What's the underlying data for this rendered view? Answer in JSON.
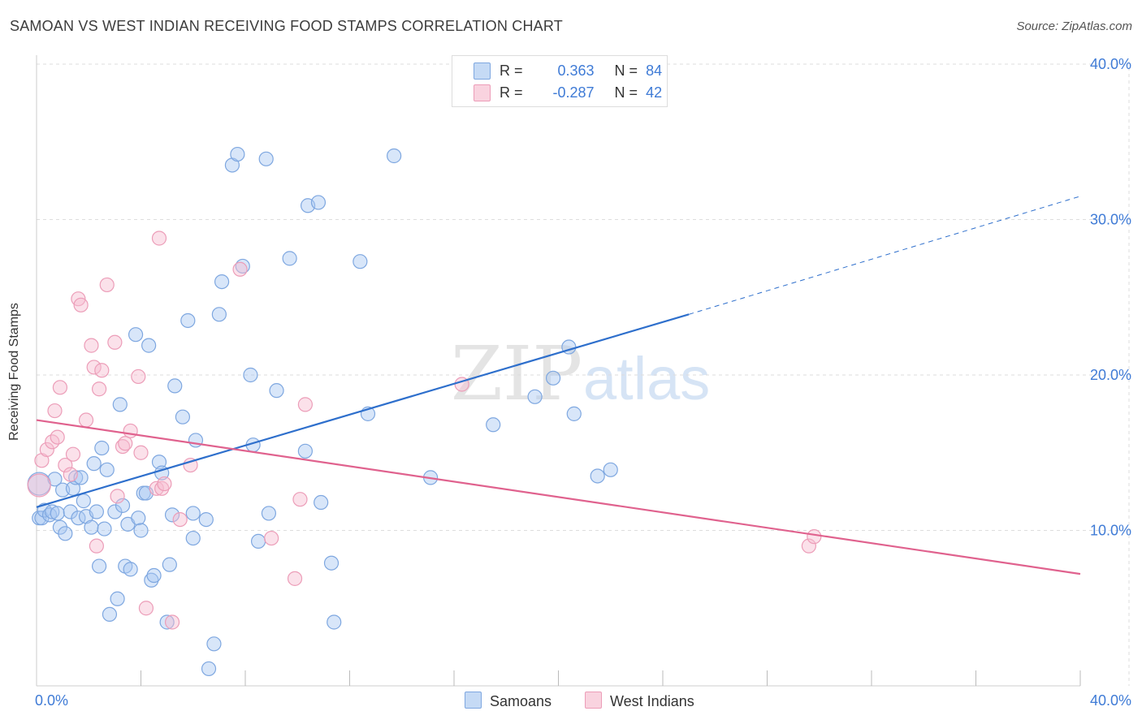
{
  "header": {
    "title": "SAMOAN VS WEST INDIAN RECEIVING FOOD STAMPS CORRELATION CHART",
    "source": "Source: ZipAtlas.com"
  },
  "legend": {
    "series": [
      {
        "r_label": "R =",
        "r_value": "0.363",
        "n_label": "N =",
        "n_value": "84"
      },
      {
        "r_label": "R =",
        "r_value": "-0.287",
        "n_label": "N =",
        "n_value": "42"
      }
    ]
  },
  "bottom_legend": {
    "samoans": "Samoans",
    "west_indians": "West Indians"
  },
  "colors": {
    "samoans_fill": "#a9c8f1",
    "samoans_stroke": "#7ea7e0",
    "samoans_line": "#2e6fcc",
    "west_indians_fill": "#f6bcd0",
    "west_indians_stroke": "#ec9db8",
    "west_indians_line": "#e0628e",
    "tick_label": "#3f7bd6",
    "grid": "#dddddd"
  },
  "watermark": {
    "zip": "ZIP",
    "atlas": "atlas"
  },
  "chart_data": {
    "type": "scatter",
    "title": "SAMOAN VS WEST INDIAN RECEIVING FOOD STAMPS CORRELATION CHART",
    "xlabel": "",
    "ylabel": "Receiving Food Stamps",
    "xlim": [
      0,
      40
    ],
    "ylim": [
      0,
      40
    ],
    "x_tick_labels": [
      {
        "value": 0,
        "label": "0.0%"
      },
      {
        "value": 40,
        "label": "40.0%"
      }
    ],
    "y_tick_labels": [
      {
        "value": 10,
        "label": "10.0%"
      },
      {
        "value": 20,
        "label": "20.0%"
      },
      {
        "value": 30,
        "label": "30.0%"
      },
      {
        "value": 40,
        "label": "40.0%"
      }
    ],
    "x_minor_ticks": [
      4,
      8,
      12,
      16,
      20,
      24,
      28,
      32,
      36,
      40
    ],
    "series": [
      {
        "name": "Samoans",
        "points": [
          [
            0.1,
            13.0,
            22
          ],
          [
            0.1,
            10.8,
            10
          ],
          [
            0.2,
            10.8,
            10
          ],
          [
            0.3,
            11.3,
            10
          ],
          [
            0.5,
            11.0,
            10
          ],
          [
            0.6,
            11.2,
            10
          ],
          [
            0.7,
            13.3,
            10
          ],
          [
            0.8,
            11.1,
            10
          ],
          [
            0.9,
            10.2,
            10
          ],
          [
            1.0,
            12.6,
            10
          ],
          [
            1.1,
            9.8,
            10
          ],
          [
            1.3,
            11.2,
            10
          ],
          [
            1.4,
            12.7,
            10
          ],
          [
            1.5,
            13.4,
            10
          ],
          [
            1.6,
            10.8,
            10
          ],
          [
            1.7,
            13.4,
            10
          ],
          [
            1.8,
            11.9,
            10
          ],
          [
            1.9,
            10.9,
            10
          ],
          [
            2.1,
            10.2,
            10
          ],
          [
            2.2,
            14.3,
            10
          ],
          [
            2.3,
            11.2,
            10
          ],
          [
            2.4,
            7.7,
            10
          ],
          [
            2.5,
            15.3,
            10
          ],
          [
            2.6,
            10.1,
            10
          ],
          [
            2.7,
            13.9,
            10
          ],
          [
            2.8,
            4.6,
            10
          ],
          [
            3.0,
            11.2,
            10
          ],
          [
            3.1,
            5.6,
            10
          ],
          [
            3.2,
            18.1,
            10
          ],
          [
            3.3,
            11.6,
            10
          ],
          [
            3.4,
            7.7,
            10
          ],
          [
            3.5,
            10.4,
            10
          ],
          [
            3.6,
            7.5,
            10
          ],
          [
            3.8,
            22.6,
            10
          ],
          [
            3.9,
            10.8,
            10
          ],
          [
            4.0,
            10.0,
            10
          ],
          [
            4.1,
            12.4,
            10
          ],
          [
            4.2,
            12.4,
            10
          ],
          [
            4.3,
            21.9,
            10
          ],
          [
            4.4,
            6.8,
            10
          ],
          [
            4.5,
            7.1,
            10
          ],
          [
            4.7,
            14.4,
            10
          ],
          [
            4.8,
            13.7,
            10
          ],
          [
            5.0,
            4.1,
            10
          ],
          [
            5.1,
            7.8,
            10
          ],
          [
            5.2,
            11.0,
            10
          ],
          [
            5.3,
            19.3,
            10
          ],
          [
            5.6,
            17.3,
            10
          ],
          [
            5.8,
            23.5,
            10
          ],
          [
            6.0,
            9.5,
            10
          ],
          [
            6.0,
            11.1,
            10
          ],
          [
            6.1,
            15.8,
            10
          ],
          [
            6.5,
            10.7,
            10
          ],
          [
            6.6,
            1.1,
            10
          ],
          [
            6.8,
            2.7,
            10
          ],
          [
            7.0,
            23.9,
            10
          ],
          [
            7.1,
            26.0,
            10
          ],
          [
            7.5,
            33.5,
            10
          ],
          [
            7.7,
            34.2,
            10
          ],
          [
            7.9,
            27.0,
            10
          ],
          [
            8.2,
            20.0,
            10
          ],
          [
            8.3,
            15.5,
            10
          ],
          [
            8.5,
            9.3,
            10
          ],
          [
            8.8,
            33.9,
            10
          ],
          [
            8.9,
            11.1,
            10
          ],
          [
            9.2,
            19.0,
            10
          ],
          [
            9.7,
            27.5,
            10
          ],
          [
            10.3,
            15.1,
            10
          ],
          [
            10.4,
            30.9,
            10
          ],
          [
            10.8,
            31.1,
            10
          ],
          [
            10.9,
            11.8,
            10
          ],
          [
            11.3,
            7.9,
            10
          ],
          [
            11.4,
            4.1,
            10
          ],
          [
            12.4,
            27.3,
            10
          ],
          [
            12.7,
            17.5,
            10
          ],
          [
            13.7,
            34.1,
            10
          ],
          [
            15.1,
            13.4,
            10
          ],
          [
            17.5,
            16.8,
            10
          ],
          [
            19.1,
            18.6,
            10
          ],
          [
            19.8,
            19.8,
            10
          ],
          [
            20.4,
            21.8,
            10
          ],
          [
            20.6,
            17.5,
            10
          ],
          [
            21.5,
            13.5,
            10
          ],
          [
            22.0,
            13.9,
            10
          ]
        ],
        "trend": {
          "x0": 0,
          "y0": 11.5,
          "x1": 25,
          "y1": 23.9,
          "dashed_to_x": 40,
          "dashed_to_y": 31.5
        }
      },
      {
        "name": "West Indians",
        "points": [
          [
            0.1,
            12.9,
            22
          ],
          [
            0.2,
            14.5,
            10
          ],
          [
            0.4,
            15.2,
            10
          ],
          [
            0.6,
            15.7,
            10
          ],
          [
            0.7,
            17.7,
            10
          ],
          [
            0.8,
            16.0,
            10
          ],
          [
            0.9,
            19.2,
            10
          ],
          [
            1.1,
            14.2,
            10
          ],
          [
            1.3,
            13.6,
            10
          ],
          [
            1.4,
            14.9,
            10
          ],
          [
            1.6,
            24.9,
            10
          ],
          [
            1.7,
            24.5,
            10
          ],
          [
            1.9,
            17.1,
            10
          ],
          [
            2.1,
            21.9,
            10
          ],
          [
            2.2,
            20.5,
            10
          ],
          [
            2.3,
            9.0,
            10
          ],
          [
            2.4,
            19.1,
            10
          ],
          [
            2.5,
            20.3,
            10
          ],
          [
            2.7,
            25.8,
            10
          ],
          [
            3.0,
            22.1,
            10
          ],
          [
            3.1,
            12.2,
            10
          ],
          [
            3.3,
            15.4,
            10
          ],
          [
            3.4,
            15.6,
            10
          ],
          [
            3.6,
            16.4,
            10
          ],
          [
            3.9,
            19.9,
            10
          ],
          [
            4.0,
            15.0,
            10
          ],
          [
            4.2,
            5.0,
            10
          ],
          [
            4.6,
            12.7,
            10
          ],
          [
            4.7,
            28.8,
            10
          ],
          [
            4.8,
            12.7,
            10
          ],
          [
            4.9,
            13.0,
            10
          ],
          [
            5.2,
            4.1,
            10
          ],
          [
            5.5,
            10.7,
            10
          ],
          [
            5.9,
            14.2,
            10
          ],
          [
            7.8,
            26.8,
            10
          ],
          [
            9.0,
            9.5,
            10
          ],
          [
            9.9,
            6.9,
            10
          ],
          [
            10.1,
            12.0,
            10
          ],
          [
            10.3,
            18.1,
            10
          ],
          [
            16.3,
            19.4,
            10
          ],
          [
            29.6,
            9.0,
            10
          ],
          [
            29.8,
            9.6,
            10
          ]
        ],
        "trend": {
          "x0": 0,
          "y0": 17.1,
          "x1": 40,
          "y1": 7.2
        }
      }
    ]
  }
}
